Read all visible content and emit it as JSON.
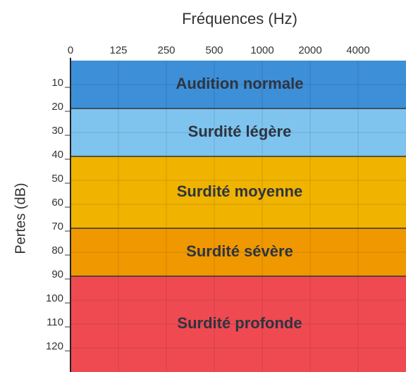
{
  "chart_data": {
    "type": "band",
    "title": "Fréquences (Hz)",
    "ylabel": "Pertes (dB)",
    "xticks": [
      0,
      125,
      250,
      500,
      1000,
      2000,
      4000
    ],
    "ylim": [
      0,
      130
    ],
    "yticks": [
      10,
      20,
      30,
      40,
      50,
      60,
      70,
      80,
      90,
      100,
      110,
      120
    ],
    "grid": true,
    "bands": [
      {
        "name": "Audition normale",
        "from": 0,
        "to": 20,
        "color": "#3d8fd8"
      },
      {
        "name": "Surdité légère",
        "from": 20,
        "to": 40,
        "color": "#7ec4ef"
      },
      {
        "name": "Surdité moyenne",
        "from": 40,
        "to": 70,
        "color": "#efb300"
      },
      {
        "name": "Surdité sévère",
        "from": 70,
        "to": 90,
        "color": "#f09800"
      },
      {
        "name": "Surdité profonde",
        "from": 90,
        "to": 130,
        "color": "#ef4a52"
      }
    ]
  }
}
